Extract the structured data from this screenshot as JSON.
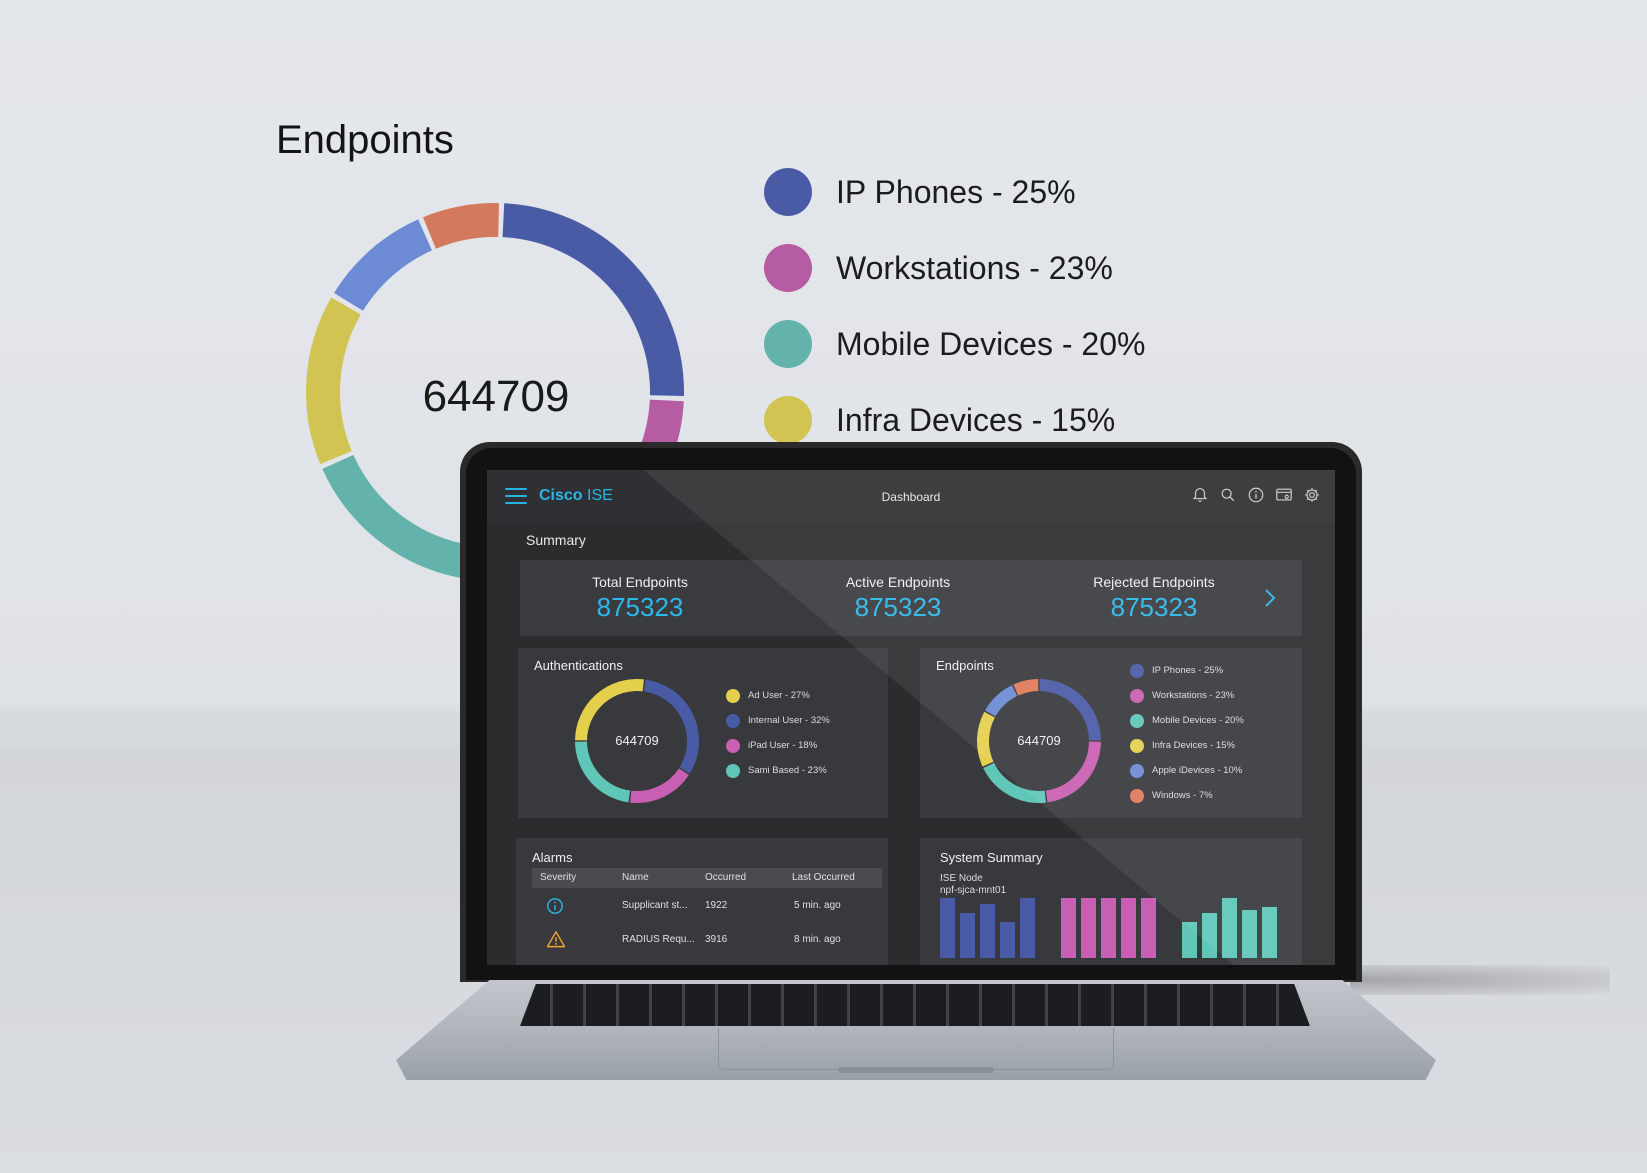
{
  "hero": {
    "title": "Endpoints",
    "total": "644709",
    "legend": [
      {
        "label": "IP Phones - 25%",
        "color": "#4a5ba6"
      },
      {
        "label": "Workstations - 23%",
        "color": "#b65ca3"
      },
      {
        "label": "Mobile Devices - 20%",
        "color": "#63b2ab"
      },
      {
        "label": "Infra Devices - 15%",
        "color": "#d1c453"
      }
    ]
  },
  "chart_data": [
    {
      "type": "pie",
      "title": "Endpoints",
      "center_value": "644709",
      "categories": [
        "IP Phones",
        "Workstations",
        "Mobile Devices",
        "Infra Devices",
        "Apple iDevices",
        "Windows"
      ],
      "values": [
        25,
        23,
        20,
        15,
        10,
        7
      ],
      "colors": [
        "#4a5ba6",
        "#b65ca3",
        "#63b2ab",
        "#d1c453",
        "#6d8ad4",
        "#d47a5c"
      ]
    },
    {
      "type": "pie",
      "title": "Authentications",
      "center_value": "644709",
      "categories": [
        "Ad User",
        "Internal User",
        "iPad User",
        "Sami Based"
      ],
      "values": [
        27,
        32,
        18,
        23
      ],
      "colors": [
        "#e5d04d",
        "#4a5ba6",
        "#c85fb2",
        "#5fc6b8"
      ]
    },
    {
      "type": "pie",
      "title": "Endpoints",
      "center_value": "644709",
      "categories": [
        "IP Phones",
        "Workstations",
        "Mobile Devices",
        "Infra Devices",
        "Apple iDevices",
        "Windows"
      ],
      "values": [
        25,
        23,
        20,
        15,
        10,
        7
      ],
      "colors": [
        "#4a5ba6",
        "#c85fb2",
        "#5fc6b8",
        "#e5d04d",
        "#6d8ad4",
        "#e07a5c"
      ]
    },
    {
      "type": "bar",
      "title": "System Summary",
      "series": [
        {
          "values": [
            10,
            7.5,
            9,
            6,
            10
          ],
          "color": "#4a5ba6"
        },
        {
          "values": [
            10,
            10,
            10,
            10,
            10
          ],
          "color": "#c85fb2"
        },
        {
          "values": [
            6,
            7.5,
            10,
            8,
            8.5
          ],
          "color": "#5fc6b8"
        }
      ]
    }
  ],
  "app": {
    "brand": "Cisco",
    "brand_suffix": "ISE",
    "page_title": "Dashboard",
    "icons": [
      "bell-icon",
      "search-icon",
      "info-icon",
      "monitor-icon",
      "gear-icon"
    ]
  },
  "summary": {
    "title": "Summary",
    "kpis": [
      {
        "label": "Total Endpoints",
        "value": "875323"
      },
      {
        "label": "Active Endpoints",
        "value": "875323"
      },
      {
        "label": "Rejected Endpoints",
        "value": "875323"
      }
    ]
  },
  "auth_card": {
    "title": "Authentications",
    "total": "644709",
    "legend": [
      {
        "label": "Ad User - 27%",
        "color": "#e5d04d"
      },
      {
        "label": "Internal User - 32%",
        "color": "#4a5ba6"
      },
      {
        "label": "iPad User - 18%",
        "color": "#c85fb2"
      },
      {
        "label": "Sami Based - 23%",
        "color": "#5fc6b8"
      }
    ]
  },
  "endpoints_card": {
    "title": "Endpoints",
    "total": "644709",
    "legend": [
      {
        "label": "IP Phones - 25%",
        "color": "#4a5ba6"
      },
      {
        "label": "Workstations - 23%",
        "color": "#c85fb2"
      },
      {
        "label": "Mobile Devices - 20%",
        "color": "#5fc6b8"
      },
      {
        "label": "Infra Devices - 15%",
        "color": "#e5d04d"
      },
      {
        "label": "Apple iDevices - 10%",
        "color": "#6d8ad4"
      },
      {
        "label": "Windows - 7%",
        "color": "#e07a5c"
      }
    ]
  },
  "alarms": {
    "title": "Alarms",
    "columns": [
      "Severity",
      "Name",
      "Occurred",
      "Last Occurred"
    ],
    "rows": [
      {
        "severity_icon": "info-icon",
        "name": "Supplicant st...",
        "occurred": "1922",
        "last": "5 min. ago"
      },
      {
        "severity_icon": "warning-icon",
        "name": "RADIUS Requ...",
        "occurred": "3916",
        "last": "8 min. ago"
      }
    ]
  },
  "system_summary": {
    "title": "System Summary",
    "node_label": "ISE Node",
    "node_name": "npf-sjca-mnt01"
  }
}
